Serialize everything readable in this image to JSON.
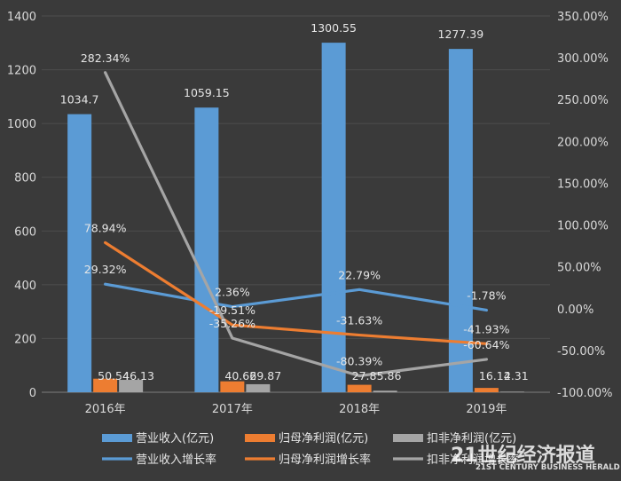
{
  "chart_data": {
    "type": "bar",
    "categories": [
      "2016年",
      "2017年",
      "2018年",
      "2019年"
    ],
    "ylim": [
      0,
      1400
    ],
    "y_ticks": [
      "0",
      "200",
      "400",
      "600",
      "800",
      "1000",
      "1200",
      "1400"
    ],
    "y2lim": [
      -100,
      350
    ],
    "y2_ticks": [
      "-100.00%",
      "-50.00%",
      "0.00%",
      "50.00%",
      "100.00%",
      "150.00%",
      "200.00%",
      "250.00%",
      "300.00%",
      "350.00%"
    ],
    "grid": true,
    "legend_position": "bottom",
    "bar_series": [
      {
        "name": "营业收入(亿元)",
        "values": [
          1034.7,
          1059.15,
          1300.55,
          1277.39
        ],
        "labels": [
          "1034.7",
          "1059.15",
          "1300.55",
          "1277.39"
        ],
        "color": "#5b9bd5"
      },
      {
        "name": "归母净利润(亿元)",
        "values": [
          50.54,
          40.66,
          27.8,
          16.14
        ],
        "labels": [
          "50.54",
          "40.66",
          "27.8",
          "16.14"
        ],
        "color": "#ed7d31"
      },
      {
        "name": "扣非净利润(亿元)",
        "values": [
          46.13,
          29.87,
          5.86,
          2.31
        ],
        "labels": [
          "46.13",
          "29.87",
          "5.86",
          "2.31"
        ],
        "color": "#a5a5a5"
      }
    ],
    "line_series": [
      {
        "name": "营业收入增长率",
        "values": [
          29.32,
          2.36,
          22.79,
          -1.78
        ],
        "labels": [
          "29.32%",
          "2.36%",
          "22.79%",
          "-1.78%"
        ],
        "color": "#5b9bd5"
      },
      {
        "name": "归母净利润增长率",
        "values": [
          78.94,
          -19.51,
          -31.63,
          -41.93
        ],
        "labels": [
          "78.94%",
          "-19.51%",
          "-31.63%",
          "-41.93%"
        ],
        "color": "#ed7d31"
      },
      {
        "name": "扣非净利润增长率",
        "values": [
          282.34,
          -35.26,
          -80.39,
          -60.64
        ],
        "labels": [
          "282.34%",
          "-35.26%",
          "-80.39%",
          "-60.64%"
        ],
        "color": "#a5a5a5"
      }
    ]
  },
  "watermark": {
    "cn": "21世纪经济报道",
    "en": "21ST CENTURY BUSINESS HERALD"
  }
}
